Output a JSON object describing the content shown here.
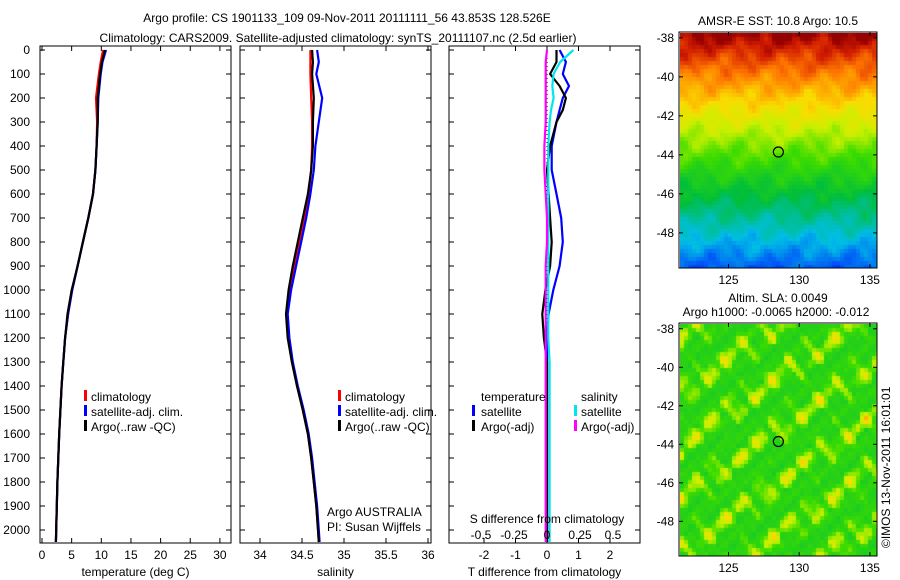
{
  "title_line1": "Argo profile: CS 1901133_109 09-Nov-2011 20111111_56 43.853S 128.526E",
  "title_line2": "Climatology: CARS2009. Satellite-adjusted climatology: synTS_20111107.nc (2.5d earlier)",
  "credit": {
    "line1": "Argo AUSTRALIA",
    "line2": "PI: Susan Wijffels"
  },
  "watermark": "©IMOS 13-Nov-2011 16:01:01",
  "colors": {
    "climatology": "#ff0000",
    "satellite": "#0000ff",
    "argo": "#000000",
    "sal_satellite": "#00e5ee",
    "sal_argo": "#ff00ff"
  },
  "chart_data": [
    {
      "type": "line",
      "id": "temperature",
      "xlabel": "temperature (deg C)",
      "ylabel": "",
      "xlim": [
        -0.5,
        31
      ],
      "ylim": [
        2050,
        -15
      ],
      "xticks": [
        "0",
        "5",
        "10",
        "15",
        "20",
        "25",
        "30"
      ],
      "xtick_values": [
        0,
        5,
        10,
        15,
        20,
        25,
        30
      ],
      "yticks": [
        "0",
        "100",
        "200",
        "300",
        "400",
        "500",
        "600",
        "700",
        "800",
        "900",
        "1000",
        "1100",
        "1200",
        "1300",
        "1400",
        "1500",
        "1600",
        "1700",
        "1800",
        "1900",
        "2000"
      ],
      "ytick_values": [
        0,
        100,
        200,
        300,
        400,
        500,
        600,
        700,
        800,
        900,
        1000,
        1100,
        1200,
        1300,
        1400,
        1500,
        1600,
        1700,
        1800,
        1900,
        2000
      ],
      "legend": [
        "climatology",
        "satellite-adj. clim.",
        "Argo(..raw -QC)"
      ],
      "depth": [
        0,
        50,
        100,
        200,
        300,
        400,
        500,
        600,
        700,
        800,
        900,
        1000,
        1100,
        1200,
        1300,
        1400,
        1500,
        1600,
        1700,
        1800,
        1900,
        2000,
        2050
      ],
      "series": [
        {
          "name": "climatology",
          "values": [
            10.3,
            9.9,
            9.6,
            9.1,
            9.3,
            9.2,
            9.0,
            8.6,
            7.8,
            6.9,
            6.0,
            5.1,
            4.4,
            3.9,
            3.6,
            3.3,
            3.1,
            2.9,
            2.75,
            2.6,
            2.5,
            2.4,
            2.35
          ]
        },
        {
          "name": "satellite-adj. clim.",
          "values": [
            10.8,
            10.2,
            9.9,
            9.5,
            9.4,
            9.2,
            9.0,
            8.6,
            7.8,
            6.9,
            6.0,
            5.1,
            4.4,
            3.9,
            3.6,
            3.3,
            3.1,
            2.9,
            2.75,
            2.6,
            2.5,
            2.4,
            2.35
          ]
        },
        {
          "name": "Argo(..raw -QC)",
          "values": [
            10.6,
            10.1,
            9.8,
            9.4,
            9.4,
            9.2,
            9.0,
            8.6,
            7.8,
            6.9,
            6.0,
            5.0,
            4.3,
            3.9,
            3.6,
            3.3,
            3.1,
            2.9,
            2.75,
            2.6,
            2.5,
            2.4,
            2.35
          ]
        }
      ]
    },
    {
      "type": "line",
      "id": "salinity",
      "xlabel": "salinity",
      "xlim": [
        33.76,
        36.04
      ],
      "ylim": [
        2050,
        -15
      ],
      "xticks": [
        "34",
        "34.5",
        "35",
        "35.5",
        "36"
      ],
      "xtick_values": [
        34,
        34.5,
        35,
        35.5,
        36
      ],
      "legend": [
        "climatology",
        "satellite-adj. clim.",
        "Argo(..raw -QC)"
      ],
      "depth": [
        0,
        50,
        100,
        200,
        300,
        400,
        500,
        600,
        700,
        800,
        900,
        1000,
        1100,
        1200,
        1300,
        1400,
        1500,
        1600,
        1700,
        1800,
        1900,
        2000,
        2050
      ],
      "series": [
        {
          "name": "climatology",
          "values": [
            34.6,
            34.6,
            34.6,
            34.61,
            34.62,
            34.62,
            34.61,
            34.58,
            34.53,
            34.47,
            34.41,
            34.36,
            34.32,
            34.34,
            34.38,
            34.44,
            34.51,
            34.57,
            34.61,
            34.64,
            34.67,
            34.69,
            34.7
          ]
        },
        {
          "name": "satellite-adj. clim.",
          "values": [
            34.68,
            34.7,
            34.67,
            34.74,
            34.7,
            34.66,
            34.64,
            34.6,
            34.55,
            34.49,
            34.43,
            34.37,
            34.33,
            34.35,
            34.39,
            34.45,
            34.52,
            34.58,
            34.62,
            34.65,
            34.68,
            34.7,
            34.71
          ]
        },
        {
          "name": "Argo(..raw -QC)",
          "values": [
            34.62,
            34.63,
            34.62,
            34.64,
            34.63,
            34.63,
            34.61,
            34.57,
            34.51,
            34.45,
            34.39,
            34.34,
            34.31,
            34.33,
            34.38,
            34.44,
            34.51,
            34.57,
            34.61,
            34.64,
            34.67,
            34.69,
            34.7
          ]
        }
      ]
    },
    {
      "type": "line",
      "id": "differences",
      "xlabel": "T difference from climatology",
      "xlabel_top": "S difference from climatology",
      "xlim": [
        -3.2,
        2.9
      ],
      "s_scale_per_T": 4.19,
      "ylim": [
        2050,
        -15
      ],
      "xticks": [
        "-2",
        "-1",
        "0",
        "1",
        "2"
      ],
      "xtick_values": [
        -2,
        -1,
        0,
        1,
        2
      ],
      "s_xticks": [
        "-0.5",
        "-0.25",
        "0",
        "0.25",
        "0.5"
      ],
      "s_xtick_values": [
        -0.5,
        -0.25,
        0,
        0.25,
        0.5
      ],
      "legend_temperature": {
        "title": "temperature",
        "items": [
          "satellite",
          "Argo(-adj)"
        ]
      },
      "legend_salinity": {
        "title": "salinity",
        "items": [
          "satellite",
          "Argo(-adj)"
        ]
      },
      "depth": [
        0,
        50,
        100,
        150,
        200,
        250,
        300,
        400,
        500,
        600,
        700,
        800,
        900,
        1000,
        1100,
        1200,
        1300,
        1400,
        1500,
        2050
      ],
      "series": [
        {
          "name": "T satellite",
          "unit": "T",
          "values": [
            0.4,
            0.6,
            0.5,
            0.7,
            0.5,
            0.4,
            0.3,
            0.15,
            0.15,
            0.3,
            0.45,
            0.5,
            0.4,
            0.2,
            0.05,
            0.0,
            0.0,
            0.0,
            0.0,
            0.0
          ]
        },
        {
          "name": "T Argo(-adj)",
          "unit": "T",
          "values": [
            0.3,
            0.3,
            0.1,
            0.4,
            0.6,
            0.5,
            0.3,
            0.1,
            0.0,
            0.05,
            0.1,
            0.15,
            0.1,
            -0.05,
            -0.15,
            -0.1,
            0.0,
            0.0,
            0.0,
            0.0
          ]
        },
        {
          "name": "S satellite",
          "unit": "S",
          "values": [
            0.2,
            0.1,
            0.05,
            0.04,
            0.05,
            0.03,
            0.02,
            0.01,
            0.01,
            0.01,
            0.01,
            0.01,
            0.01,
            0.01,
            0.01,
            0.01,
            0.02,
            0.02,
            0.02,
            0.02
          ]
        },
        {
          "name": "S Argo(-adj)",
          "unit": "S",
          "values": [
            0.0,
            -0.01,
            -0.01,
            -0.01,
            -0.01,
            -0.01,
            -0.01,
            -0.02,
            -0.02,
            -0.01,
            0.0,
            0.0,
            -0.01,
            -0.01,
            -0.01,
            -0.01,
            -0.01,
            -0.01,
            -0.01,
            -0.01
          ]
        }
      ]
    },
    {
      "type": "heatmap",
      "id": "sst-map",
      "title": "AMSR-E SST: 10.8 Argo: 10.5",
      "xlim": [
        121.5,
        135.5
      ],
      "ylim": [
        -49.8,
        -37.7
      ],
      "xticks": [
        "125",
        "130",
        "135"
      ],
      "xtick_values": [
        125,
        130,
        135
      ],
      "yticks": [
        "-38",
        "-40",
        "-42",
        "-44",
        "-46",
        "-48"
      ],
      "ytick_values": [
        -38,
        -40,
        -42,
        -44,
        -46,
        -48
      ],
      "marker": {
        "lon": 128.526,
        "lat": -43.853
      }
    },
    {
      "type": "heatmap",
      "id": "sla-map",
      "title": "Altim. SLA: 0.0049",
      "subtitle": "Argo h1000: -0.0065 h2000: -0.012",
      "xlim": [
        121.5,
        135.5
      ],
      "ylim": [
        -49.8,
        -37.7
      ],
      "xticks": [
        "125",
        "130",
        "135"
      ],
      "xtick_values": [
        125,
        130,
        135
      ],
      "yticks": [
        "-38",
        "-40",
        "-42",
        "-44",
        "-46",
        "-48"
      ],
      "ytick_values": [
        -38,
        -40,
        -42,
        -44,
        -46,
        -48
      ],
      "marker": {
        "lon": 128.526,
        "lat": -43.853
      }
    }
  ]
}
